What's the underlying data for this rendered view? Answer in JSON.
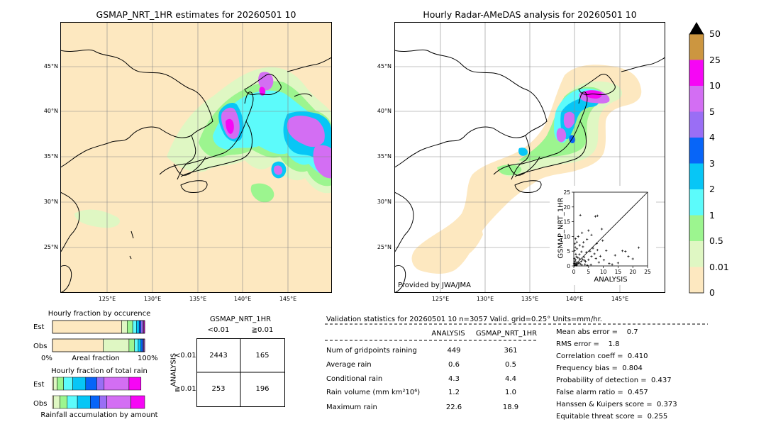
{
  "maps": {
    "left_title": "GSMAP_NRT_1HR estimates for 20260501 10",
    "right_title": "Hourly Radar-AMeDAS analysis for 20260501 10",
    "lat_labels": [
      "45°N",
      "40°N",
      "35°N",
      "30°N",
      "25°N"
    ],
    "lon_labels": [
      "125°E",
      "130°E",
      "135°E",
      "140°E",
      "145°E"
    ],
    "credit": "Provided by JWA/JMA"
  },
  "colorbar": {
    "labels": [
      "0",
      "0.01",
      "0.5",
      "1",
      "2",
      "3",
      "4",
      "5",
      "10",
      "25",
      "50"
    ],
    "colors": [
      "#fde8c0",
      "#dff7c3",
      "#9cf58f",
      "#5cfbfb",
      "#07c6f6",
      "#0765f8",
      "#9a6ef5",
      "#d36ef3",
      "#f606f5",
      "#cc9640"
    ]
  },
  "scatter": {
    "xlabel": "ANALYSIS",
    "ylabel": "GSMAP_NRT_1HR",
    "ticks": [
      "0",
      "5",
      "10",
      "15",
      "20",
      "25"
    ]
  },
  "occurrence": {
    "title": "Hourly fraction by occurence",
    "row_est": "Est",
    "row_obs": "Obs",
    "axis_left": "0%",
    "axis_mid": "Areal fraction",
    "axis_right": "100%"
  },
  "total": {
    "title": "Hourly fraction of total rain",
    "row_est": "Est",
    "row_obs": "Obs",
    "caption": "Rainfall accumulation by amount"
  },
  "contingency": {
    "title": "GSMAP_NRT_1HR",
    "col_lt": "<0.01",
    "col_ge": "≧0.01",
    "row_axis": "ANALYSIS",
    "row_lt": "<0.01",
    "row_ge": "≧0.01",
    "c11": "2443",
    "c12": "165",
    "c21": "253",
    "c22": "196"
  },
  "validation": {
    "header": "Validation statistics for 20260501 10  n=3057 Valid. grid=0.25° Units=mm/hr.",
    "col_analysis": "ANALYSIS",
    "col_gsmap": "GSMAP_NRT_1HR",
    "rows": [
      {
        "label": "Num of gridpoints raining",
        "a": "449",
        "g": "361"
      },
      {
        "label": "Average rain",
        "a": "0.6",
        "g": "0.5"
      },
      {
        "label": "Conditional rain",
        "a": "4.3",
        "g": "4.4"
      },
      {
        "label": "Rain volume (mm km²10⁶)",
        "a": "1.2",
        "g": "1.0"
      },
      {
        "label": "Maximum rain",
        "a": "22.6",
        "g": "18.9"
      }
    ],
    "scores": [
      "Mean abs error =    0.7",
      "RMS error =    1.8",
      "Correlation coeff =  0.410",
      "Frequency bias =  0.804",
      "Probability of detection =  0.437",
      "False alarm ratio =  0.457",
      "Hanssen & Kuipers score =  0.373",
      "Equitable threat score =  0.255"
    ]
  },
  "chart_data": {
    "type": "scatter",
    "title": "",
    "xlabel": "ANALYSIS",
    "ylabel": "GSMAP_NRT_1HR",
    "xlim": [
      0,
      25
    ],
    "ylim": [
      0,
      25
    ],
    "points": [
      [
        0.2,
        0.3
      ],
      [
        0.4,
        0.1
      ],
      [
        0.5,
        0.8
      ],
      [
        0.8,
        0.4
      ],
      [
        1.0,
        1.2
      ],
      [
        1.2,
        0.6
      ],
      [
        1.5,
        0.9
      ],
      [
        0.3,
        1.5
      ],
      [
        0.6,
        2.0
      ],
      [
        1.8,
        1.1
      ],
      [
        2.0,
        2.4
      ],
      [
        2.2,
        0.7
      ],
      [
        2.5,
        1.6
      ],
      [
        3.0,
        2.2
      ],
      [
        0.9,
        3.1
      ],
      [
        1.4,
        2.8
      ],
      [
        0.7,
        4.0
      ],
      [
        0.3,
        5.2
      ],
      [
        1.1,
        5.8
      ],
      [
        0.5,
        6.3
      ],
      [
        3.5,
        3.0
      ],
      [
        4.0,
        1.5
      ],
      [
        4.2,
        4.6
      ],
      [
        5.0,
        2.1
      ],
      [
        5.5,
        5.0
      ],
      [
        6.0,
        3.2
      ],
      [
        0.4,
        7.5
      ],
      [
        1.0,
        8.1
      ],
      [
        2.0,
        7.0
      ],
      [
        3.1,
        6.5
      ],
      [
        0.6,
        9.2
      ],
      [
        1.5,
        10.0
      ],
      [
        2.8,
        11.2
      ],
      [
        6.5,
        6.0
      ],
      [
        7.0,
        4.1
      ],
      [
        7.5,
        2.5
      ],
      [
        8.0,
        5.4
      ],
      [
        8.5,
        1.2
      ],
      [
        9.0,
        3.3
      ],
      [
        10.2,
        2.0
      ],
      [
        2.2,
        17.2
      ],
      [
        7.3,
        16.8
      ],
      [
        8.0,
        17.0
      ],
      [
        9.5,
        12.5
      ],
      [
        6.0,
        10.5
      ],
      [
        5.0,
        12.0
      ],
      [
        11.0,
        5.2
      ],
      [
        12.0,
        0.8
      ],
      [
        14.0,
        3.6
      ],
      [
        15.0,
        1.0
      ],
      [
        16.5,
        5.1
      ],
      [
        17.5,
        4.9
      ],
      [
        18.5,
        3.2
      ],
      [
        20.0,
        2.4
      ],
      [
        22.0,
        6.2
      ],
      [
        13.0,
        0.5
      ],
      [
        9.8,
        8.6
      ],
      [
        4.5,
        9.0
      ],
      [
        3.3,
        8.0
      ],
      [
        7.8,
        7.6
      ],
      [
        0.1,
        0.9
      ],
      [
        0.2,
        2.5
      ],
      [
        0.9,
        0.2
      ],
      [
        2.7,
        0.3
      ],
      [
        3.8,
        0.5
      ],
      [
        4.6,
        0.2
      ],
      [
        5.8,
        0.4
      ],
      [
        1.9,
        3.9
      ],
      [
        2.6,
        4.8
      ],
      [
        3.6,
        1.9
      ]
    ]
  }
}
